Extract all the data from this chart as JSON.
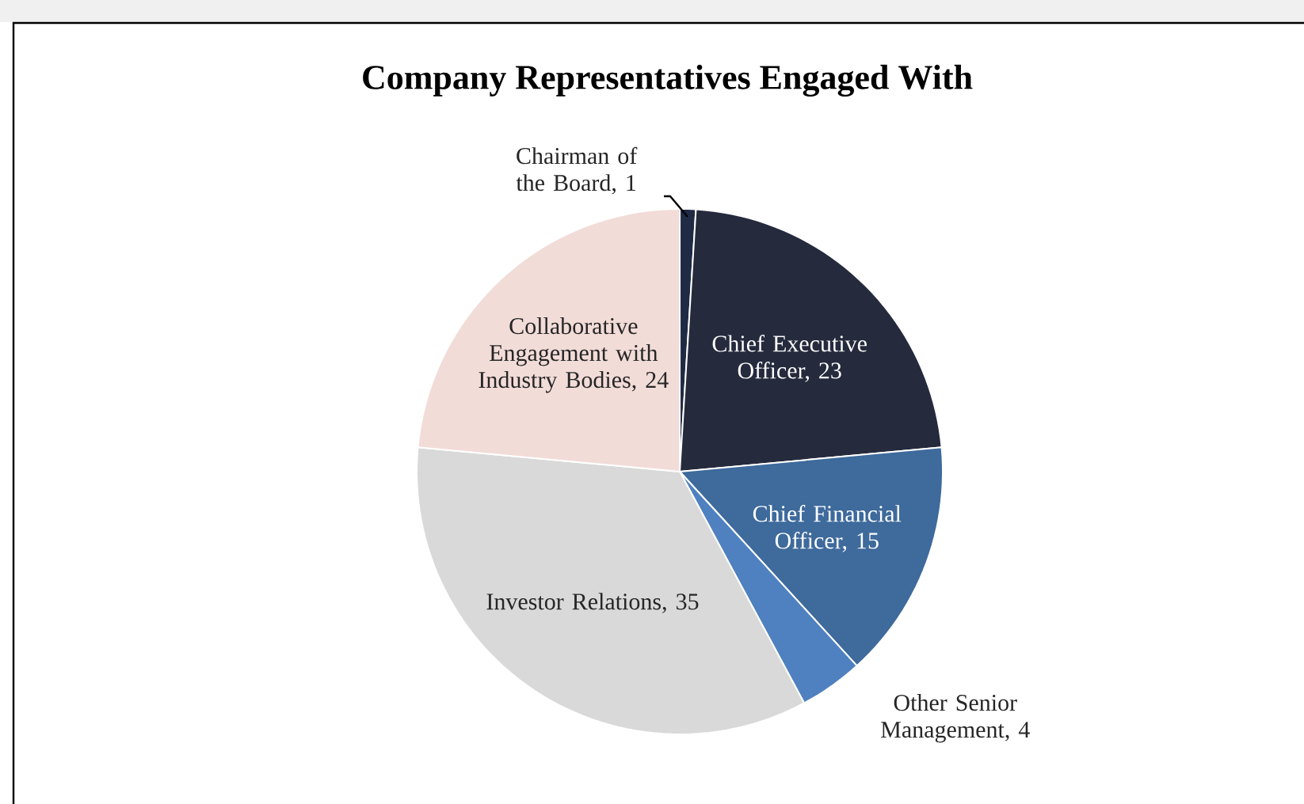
{
  "chart_data": {
    "type": "pie",
    "title": "Company Representatives Engaged With",
    "categories": [
      "Chairman of the Board, 1",
      "Chief Executive Officer, 23",
      "Chief Financial Officer, 15",
      "Other Senior Management, 4",
      "Investor Relations, 35",
      "Collaborative Engagement with Industry Bodies, 24"
    ],
    "values": [
      1,
      23,
      15,
      4,
      35,
      24
    ],
    "colors": [
      "#1f2a44",
      "#252a3d",
      "#3e6a9c",
      "#4f81c0",
      "#d9d9da",
      "#f2dcd8"
    ]
  }
}
